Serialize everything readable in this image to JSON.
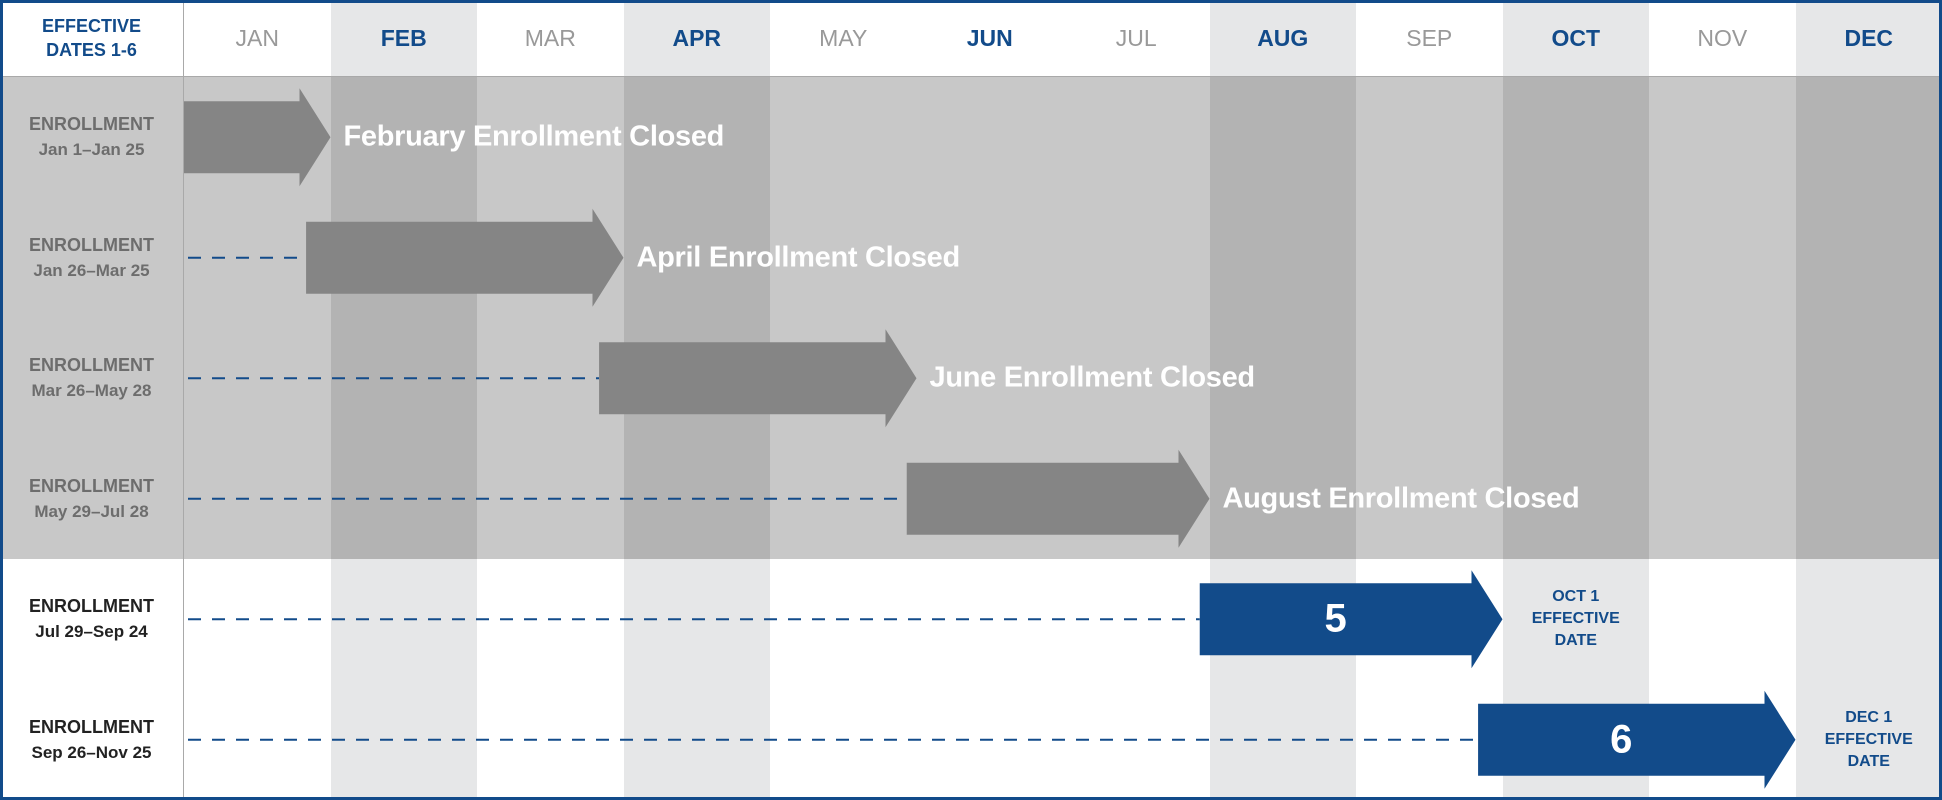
{
  "header": {
    "corner_line1": "EFFECTIVE",
    "corner_line2": "DATES 1-6"
  },
  "months": [
    {
      "label": "JAN",
      "highlight": false
    },
    {
      "label": "FEB",
      "highlight": true
    },
    {
      "label": "MAR",
      "highlight": false
    },
    {
      "label": "APR",
      "highlight": true
    },
    {
      "label": "MAY",
      "highlight": false
    },
    {
      "label": "JUN",
      "highlight": false,
      "blue_text": true
    },
    {
      "label": "JUL",
      "highlight": false
    },
    {
      "label": "AUG",
      "highlight": true
    },
    {
      "label": "SEP",
      "highlight": false
    },
    {
      "label": "OCT",
      "highlight": true
    },
    {
      "label": "NOV",
      "highlight": false
    },
    {
      "label": "DEC",
      "highlight": true
    }
  ],
  "rows": [
    {
      "title": "ENROLLMENT",
      "dates": "Jan 1–Jan 25",
      "start": "Jan 1",
      "arrow_end": "FEB",
      "status": "closed",
      "closed_text": "February Enrollment Closed"
    },
    {
      "title": "ENROLLMENT",
      "dates": "Jan 26–Mar 25",
      "start": "Jan 26",
      "arrow_end": "APR",
      "status": "closed",
      "closed_text": "April Enrollment Closed"
    },
    {
      "title": "ENROLLMENT",
      "dates": "Mar 26–May 28",
      "start": "Mar 26",
      "arrow_end": "JUN",
      "status": "closed",
      "closed_text": "June Enrollment Closed"
    },
    {
      "title": "ENROLLMENT",
      "dates": "May 29–Jul 28",
      "start": "May 29",
      "arrow_end": "AUG",
      "status": "closed",
      "closed_text": "August Enrollment Closed"
    },
    {
      "title": "ENROLLMENT",
      "dates": "Jul 29–Sep 24",
      "start": "Jul 29",
      "arrow_end": "OCT",
      "status": "open",
      "number": "5",
      "effective": [
        "OCT 1",
        "EFFECTIVE",
        "DATE"
      ]
    },
    {
      "title": "ENROLLMENT",
      "dates": "Sep 26–Nov 25",
      "start": "Sep 26",
      "arrow_end": "DEC",
      "status": "open",
      "number": "6",
      "effective": [
        "DEC 1",
        "EFFECTIVE",
        "DATE"
      ]
    }
  ],
  "colors": {
    "brand_blue": "#124b8a",
    "closed_arrow": "#858585",
    "closed_light": "#c8c8c8",
    "closed_dark": "#b3b3b3",
    "open_light": "#ffffff",
    "open_dark": "#e6e7e8",
    "grey_text": "#6d6d6d",
    "header_grey_text": "#999999",
    "dark_text": "#222222"
  }
}
